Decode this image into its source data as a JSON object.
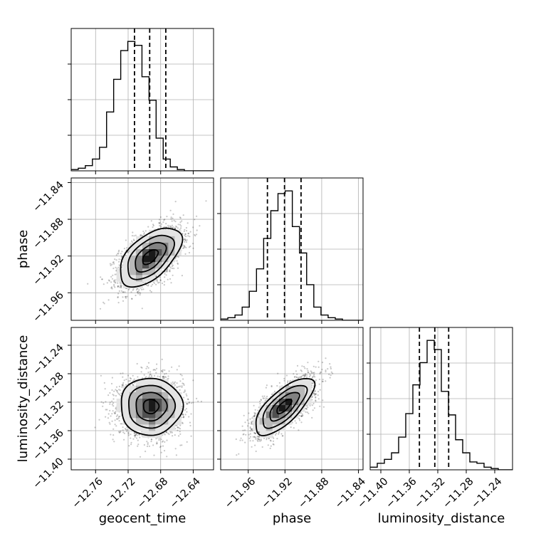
{
  "chart_data": {
    "type": "corner",
    "parameters": [
      "geocent_time",
      "phase",
      "luminosity_distance"
    ],
    "axis_labels": {
      "geocent_time": "geocent_time",
      "phase": "phase",
      "luminosity_distance": "luminosity_distance"
    },
    "ranges": {
      "geocent_time": [
        -12.79,
        -12.615
      ],
      "phase": [
        -11.99,
        -11.835
      ],
      "luminosity_distance": [
        -11.415,
        -11.215
      ]
    },
    "ticks": {
      "geocent_time": [
        -12.76,
        -12.72,
        -12.68,
        -12.64
      ],
      "phase": [
        -11.96,
        -11.92,
        -11.88,
        -11.84
      ],
      "luminosity_distance": [
        -11.4,
        -11.36,
        -11.32,
        -11.28,
        -11.24
      ]
    },
    "tick_labels": {
      "geocent_time": [
        "−12.76",
        "−12.72",
        "−12.68",
        "−12.64"
      ],
      "phase": [
        "−11.96",
        "−11.92",
        "−11.88",
        "−11.84"
      ],
      "luminosity_distance": [
        "−11.40",
        "−11.36",
        "−11.32",
        "−11.28",
        "−11.24"
      ]
    },
    "quantiles": {
      "geocent_time": [
        -12.7122,
        -12.6935,
        -12.6737
      ],
      "phase": [
        -11.9391,
        -11.9205,
        -11.9025
      ],
      "luminosity_distance": [
        -11.3458,
        -11.3242,
        -11.3047
      ]
    },
    "histograms": {
      "geocent_time": {
        "bin_width": 0.0087,
        "start": -12.79,
        "counts": [
          0.01,
          0.02,
          0.04,
          0.09,
          0.18,
          0.45,
          0.7,
          0.92,
          0.99,
          0.96,
          0.72,
          0.54,
          0.25,
          0.09,
          0.03,
          0.01,
          0,
          0,
          0,
          0
        ]
      },
      "phase": {
        "bin_width": 0.0078,
        "start": -11.99,
        "counts": [
          0.01,
          0.02,
          0.04,
          0.1,
          0.22,
          0.39,
          0.62,
          0.83,
          0.96,
          0.98,
          0.71,
          0.51,
          0.27,
          0.1,
          0.04,
          0.02,
          0.01,
          0,
          0,
          0
        ]
      },
      "luminosity_distance": {
        "bin_width": 0.01,
        "start": -11.415,
        "counts": [
          0.02,
          0.05,
          0.08,
          0.13,
          0.25,
          0.43,
          0.65,
          0.82,
          0.99,
          0.92,
          0.6,
          0.42,
          0.23,
          0.13,
          0.06,
          0.05,
          0.02,
          0.01,
          0,
          0
        ]
      }
    },
    "joint": [
      {
        "x": "geocent_time",
        "y": "phase",
        "center": [
          -12.693,
          -11.921
        ],
        "sigma": [
          0.019,
          0.016
        ],
        "correlation": 0.55
      },
      {
        "x": "geocent_time",
        "y": "luminosity_distance",
        "center": [
          -12.692,
          -11.326
        ],
        "sigma": [
          0.019,
          0.02
        ],
        "correlation": 0.0
      },
      {
        "x": "phase",
        "y": "luminosity_distance",
        "center": [
          -11.921,
          -11.326
        ],
        "sigma": [
          0.016,
          0.02
        ],
        "correlation": 0.72
      }
    ],
    "contour_levels_sigma": [
      0.5,
      1.0,
      1.5,
      2.0
    ],
    "grid": true
  }
}
